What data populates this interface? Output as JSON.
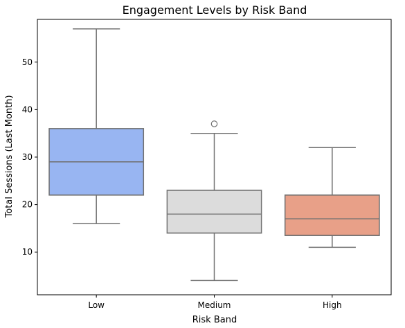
{
  "chart_data": {
    "type": "box",
    "title": "Engagement Levels by Risk Band",
    "xlabel": "Risk Band",
    "ylabel": "Total Sessions (Last Month)",
    "categories": [
      "Low",
      "Medium",
      "High"
    ],
    "yticks": [
      10,
      20,
      30,
      40,
      50
    ],
    "ylim": [
      1,
      59
    ],
    "grid": false,
    "boxes": [
      {
        "category": "Low",
        "whisker_low": 16,
        "q1": 22,
        "median": 29,
        "q3": 36,
        "whisker_high": 57,
        "outliers": [],
        "color": "#98b5f2"
      },
      {
        "category": "Medium",
        "whisker_low": 4,
        "q1": 14,
        "median": 18,
        "q3": 23,
        "whisker_high": 35,
        "outliers": [
          37
        ],
        "color": "#dcdcdc"
      },
      {
        "category": "High",
        "whisker_low": 11,
        "q1": 13.5,
        "median": 17,
        "q3": 22,
        "whisker_high": 32,
        "outliers": [],
        "color": "#e8a088"
      }
    ],
    "line_color": "#707070"
  }
}
